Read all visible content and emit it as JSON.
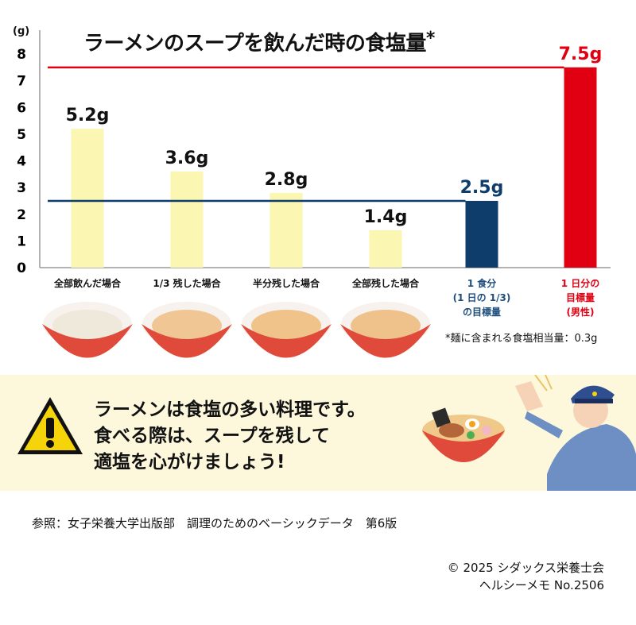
{
  "title": "ラーメンのスープを飲んだ時の食塩量",
  "title_mark": "*",
  "unit_label": "(g)",
  "chart_data": {
    "type": "bar",
    "title": "ラーメンのスープを飲んだ時の食塩量*",
    "ylabel": "(g)",
    "ylim": [
      0,
      8
    ],
    "yticks": [
      0,
      1,
      2,
      3,
      4,
      5,
      6,
      7,
      8
    ],
    "grid": false,
    "bars": [
      {
        "label": "全部飲んだ場合",
        "value": 5.2,
        "value_label": "5.2g",
        "color": "#fbf6b2",
        "label_color": "#111111"
      },
      {
        "label": "1/3 残した場合",
        "value": 3.6,
        "value_label": "3.6g",
        "color": "#fbf6b2",
        "label_color": "#111111"
      },
      {
        "label": "半分残した場合",
        "value": 2.8,
        "value_label": "2.8g",
        "color": "#fbf6b2",
        "label_color": "#111111"
      },
      {
        "label": "全部残した場合",
        "value": 1.4,
        "value_label": "1.4g",
        "color": "#fbf6b2",
        "label_color": "#111111"
      },
      {
        "label": "1 食分\n(1 日の 1/3)\nの目標量",
        "value": 2.5,
        "value_label": "2.5g",
        "color": "#0f3d6b",
        "label_color": "#1f4e7d"
      },
      {
        "label": "1 日分の\n目標量\n(男性)",
        "value": 7.5,
        "value_label": "7.5g",
        "color": "#e00012",
        "label_color": "#e00012"
      }
    ],
    "reference_lines": [
      {
        "value": 7.5,
        "color": "#e00012"
      },
      {
        "value": 2.5,
        "color": "#0f3d6b"
      }
    ]
  },
  "note": "*麺に含まれる食塩相当量：0.3g",
  "banner": {
    "lines": [
      "ラーメンは食塩の多い料理です。",
      "食べる際は、スープを残して",
      "適塩を心がけましょう!"
    ],
    "icon": "warning-icon"
  },
  "reference": "参照：女子栄養大学出版部　調理のためのベーシックデータ　第6版",
  "copyright": "© 2025 シダックス栄養士会",
  "memo": "ヘルシーメモ  No.2506",
  "colors": {
    "bowl": "#e04a3a",
    "banner_bg": "#fdf8dc",
    "warning": "#f5d50a"
  }
}
